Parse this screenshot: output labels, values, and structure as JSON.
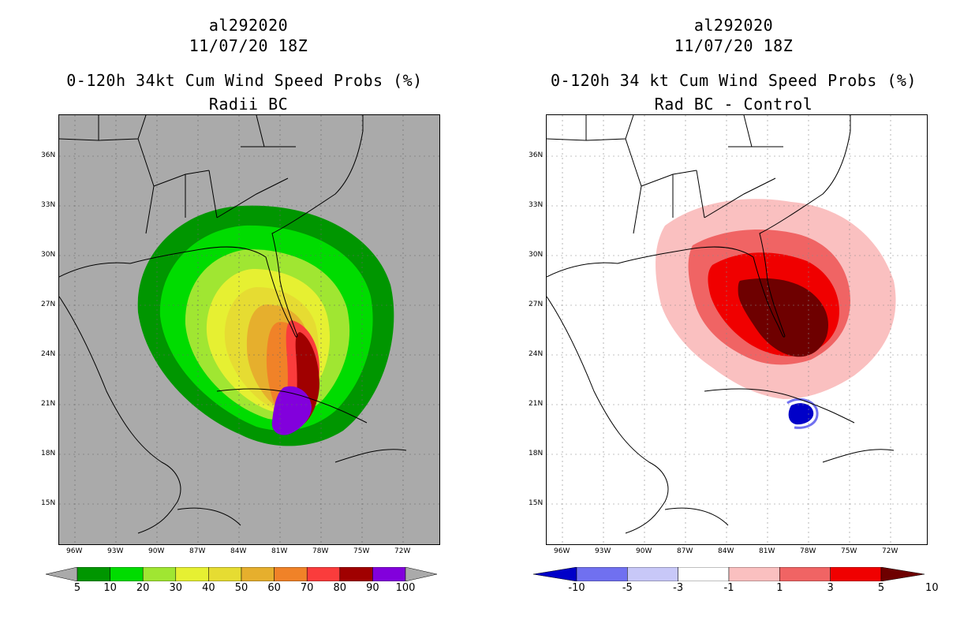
{
  "left": {
    "title1": "al292020",
    "title2": "11/07/20 18Z",
    "title3": "0-120h 34kt Cum Wind Speed Probs (%)",
    "title4": "Radii BC",
    "colorbar": {
      "labels": [
        "5",
        "10",
        "20",
        "30",
        "40",
        "50",
        "60",
        "70",
        "80",
        "90",
        "100"
      ],
      "colors": [
        "#009600",
        "#00dc00",
        "#a0e632",
        "#e6f032",
        "#e6dc32",
        "#e6af2d",
        "#f08228",
        "#fa3c3c",
        "#a00000",
        "#8200dc"
      ]
    }
  },
  "right": {
    "title1": "al292020",
    "title2": "11/07/20 18Z",
    "title3": "0-120h 34 kt Cum Wind Speed Probs (%)",
    "title4": "Rad BC - Control",
    "colorbar": {
      "labels": [
        "-10",
        "-5",
        "-3",
        "-1",
        "1",
        "3",
        "5",
        "10"
      ],
      "colors": [
        "#0000c8",
        "#7070f0",
        "#c8c8f8",
        "#ffffff",
        "#fac0c0",
        "#f06464",
        "#f00000",
        "#6e0000"
      ]
    }
  },
  "lon_ticks": [
    "96W",
    "93W",
    "90W",
    "87W",
    "84W",
    "81W",
    "78W",
    "75W",
    "72W"
  ],
  "lat_ticks": [
    "36N",
    "33N",
    "30N",
    "27N",
    "24N",
    "21N",
    "18N",
    "15N"
  ]
}
